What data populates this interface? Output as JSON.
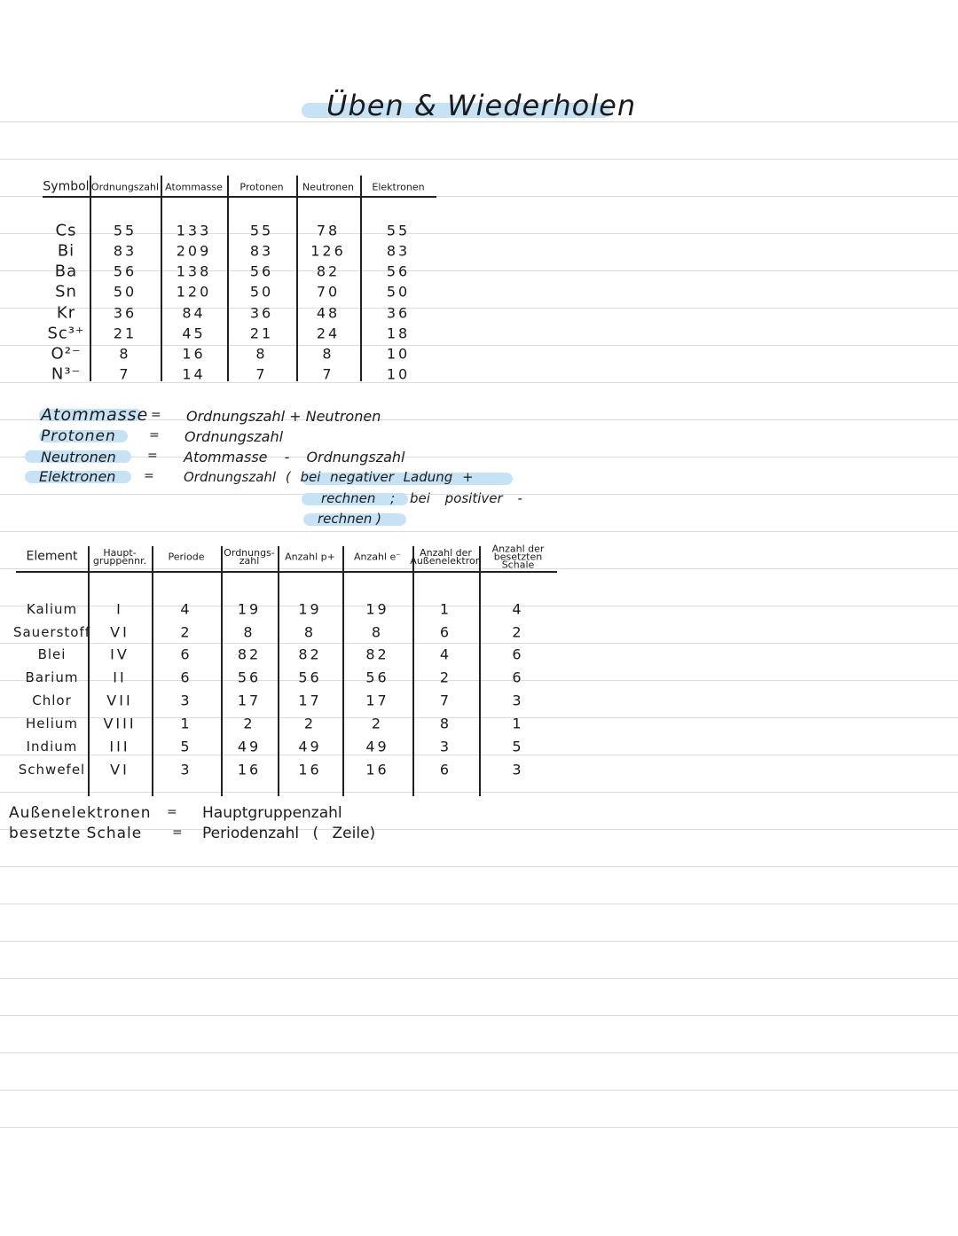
{
  "title": "Üben & Wiederholen",
  "table1": {
    "headers": [
      "Symbol",
      "Ordnungszahl",
      "Atommasse",
      "Protonen",
      "Neutronen",
      "Elektronen"
    ],
    "rows": [
      [
        "Cs",
        "55",
        "133",
        "55",
        "78",
        "55"
      ],
      [
        "Bi",
        "83",
        "209",
        "83",
        "126",
        "83"
      ],
      [
        "Ba",
        "56",
        "138",
        "56",
        "82",
        "56"
      ],
      [
        "Sn",
        "50",
        "120",
        "50",
        "70",
        "50"
      ],
      [
        "Kr",
        "36",
        "84",
        "36",
        "48",
        "36"
      ],
      [
        "Sc³⁺",
        "21",
        "45",
        "21",
        "24",
        "18"
      ],
      [
        "O²⁻",
        "8",
        "16",
        "8",
        "8",
        "10"
      ],
      [
        "N³⁻",
        "7",
        "14",
        "7",
        "7",
        "10"
      ]
    ]
  },
  "formulas": [
    {
      "left": "Atommasse",
      "sign": "=",
      "right": "Ordnungszahl + Neutronen"
    },
    {
      "left": "Protonen",
      "sign": "=",
      "right": "Ordnungszahl"
    },
    {
      "left": "Neutronen",
      "sign": "=",
      "right": "Atommasse - Ordnungszahl"
    },
    {
      "left": "Elektronen",
      "sign": "=",
      "right": "Ordnungszahl ( bei negativer Ladung +",
      "cont1": "rechnen ; bei positiver -",
      "cont2": "rechnen )"
    }
  ],
  "table2": {
    "headers": [
      "Element",
      "Haupt-\ngruppennr.",
      "Periode",
      "Ordnungs-\nzahl",
      "Anzahl p+",
      "Anzahl e⁻",
      "Anzahl der\nAußenelektron",
      "Anzahl der\nbesetzten\nSchale"
    ],
    "rows": [
      [
        "Kalium",
        "I",
        "4",
        "19",
        "19",
        "19",
        "1",
        "4"
      ],
      [
        "Sauerstoff",
        "VI",
        "2",
        "8",
        "8",
        "8",
        "6",
        "2"
      ],
      [
        "Blei",
        "IV",
        "6",
        "82",
        "82",
        "82",
        "4",
        "6"
      ],
      [
        "Barium",
        "II",
        "6",
        "56",
        "56",
        "56",
        "2",
        "6"
      ],
      [
        "Chlor",
        "VII",
        "3",
        "17",
        "17",
        "17",
        "7",
        "3"
      ],
      [
        "Helium",
        "VIII",
        "1",
        "2",
        "2",
        "2",
        "8",
        "1"
      ],
      [
        "Indium",
        "III",
        "5",
        "49",
        "49",
        "49",
        "3",
        "5"
      ],
      [
        "Schwefel",
        "VI",
        "3",
        "16",
        "16",
        "16",
        "6",
        "3"
      ]
    ]
  },
  "notes": [
    {
      "left": "Außenelektronen",
      "sign": "=",
      "right": "Hauptgruppenzahl"
    },
    {
      "left": "besetzte Schale",
      "sign": "=",
      "right": "Periodenzahl ( Zeile)"
    }
  ],
  "colors": {
    "highlight": "#c6e3f6",
    "ink": "#1b1b1b",
    "rule": "#dcdcdc"
  }
}
